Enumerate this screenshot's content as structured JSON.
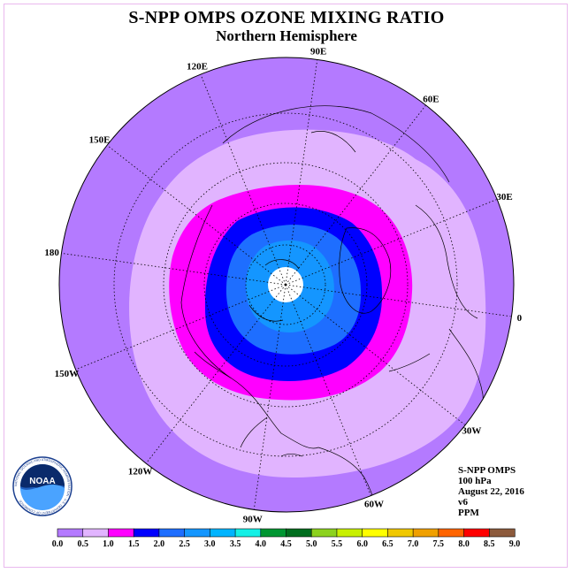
{
  "title": "S-NPP OMPS OZONE MIXING RATIO",
  "subtitle": "Northern Hemisphere",
  "longitude_labels": [
    "90E",
    "60E",
    "30E",
    "0",
    "30W",
    "60W",
    "90W",
    "120W",
    "150W",
    "180",
    "150E",
    "120E"
  ],
  "info": {
    "instrument": "S-NPP OMPS",
    "level": "100 hPa",
    "date": "August 22, 2016",
    "version": "v6",
    "units": "PPM"
  },
  "logo": {
    "text": "NOAA",
    "ring_text": "NATIONAL OCEANIC AND ATMOSPHERIC ADMINISTRATION · U.S. DEPARTMENT OF COMMERCE"
  },
  "colorbar": {
    "ticks": [
      "0.0",
      "0.5",
      "1.0",
      "1.5",
      "2.0",
      "2.5",
      "3.0",
      "3.5",
      "4.0",
      "4.5",
      "5.0",
      "5.5",
      "6.0",
      "6.5",
      "7.0",
      "7.5",
      "8.0",
      "8.5",
      "9.0"
    ],
    "colors": [
      "#b47aff",
      "#e1b4ff",
      "#ff00ff",
      "#0000ff",
      "#1e6eff",
      "#1496ff",
      "#00b4ff",
      "#14f0e6",
      "#009632",
      "#006e1e",
      "#8cd21e",
      "#c8f000",
      "#ffff00",
      "#f0c800",
      "#f0a000",
      "#ff6400",
      "#ff0000",
      "#8c5a3c"
    ]
  },
  "map_colors": {
    "outer": "#b47aff",
    "band_0_5": "#e1b4ff",
    "band_1_0": "#ff00ff",
    "band_1_5": "#0000ff",
    "band_2_0": "#1e6eff",
    "band_2_5": "#1496ff",
    "pole": "#ffffff"
  }
}
